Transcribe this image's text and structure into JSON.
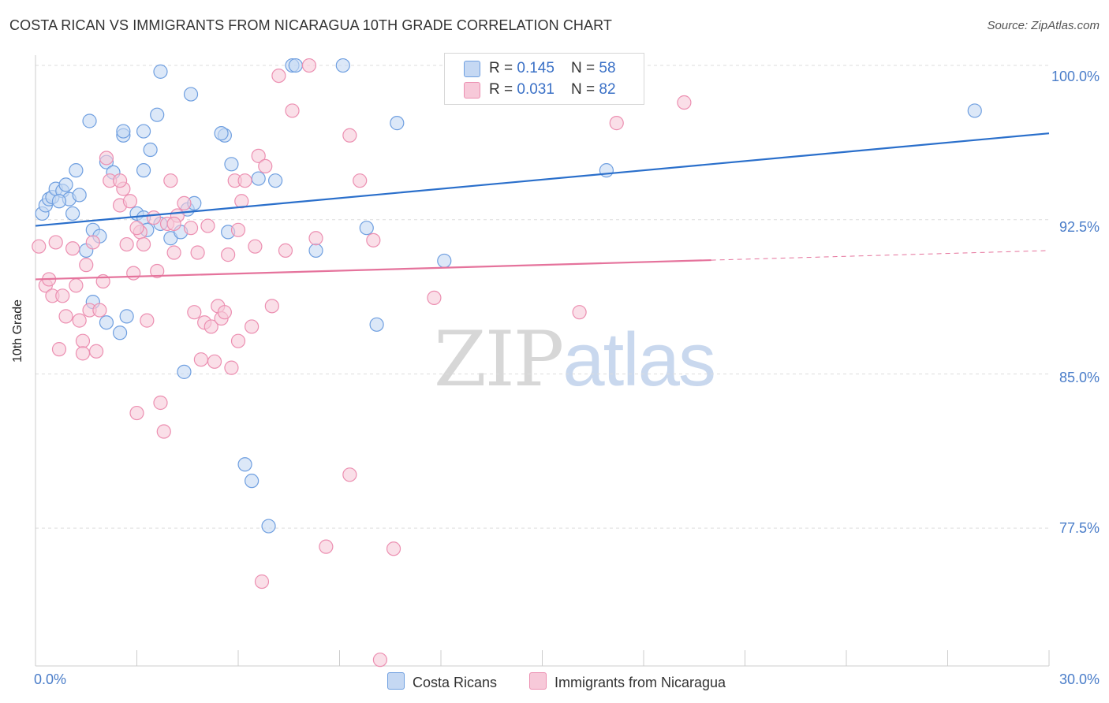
{
  "title": "COSTA RICAN VS IMMIGRANTS FROM NICARAGUA 10TH GRADE CORRELATION CHART",
  "source": "Source: ZipAtlas.com",
  "watermark": {
    "zip": "ZIP",
    "atlas": "atlas"
  },
  "colors": {
    "blue": "#6f9fe0",
    "blue_fill": "#c5d8f3",
    "blue_line": "#2a6fcb",
    "pink": "#ec8fb1",
    "pink_fill": "#f7c9d9",
    "pink_line": "#e5739c",
    "tick_text": "#4a7dc9",
    "grid": "#dddddd"
  },
  "legend": {
    "rows": [
      {
        "r_label": "R = ",
        "r_value": "0.145",
        "n_label": "N = ",
        "n_value": "58"
      },
      {
        "r_label": "R = ",
        "r_value": "0.031",
        "n_label": "N = ",
        "n_value": "82"
      }
    ]
  },
  "bottom_legend": [
    "Costa Ricans",
    "Immigrants from Nicaragua"
  ],
  "chart_data": {
    "type": "scatter",
    "ylabel": "10th Grade",
    "xlim": [
      0,
      30
    ],
    "ylim": [
      70.8,
      100.5
    ],
    "x_ticks_labels": [
      "0.0%",
      "30.0%"
    ],
    "y_ticks": [
      100.0,
      92.5,
      85.0,
      77.5
    ],
    "y_ticks_labels": [
      "100.0%",
      "92.5%",
      "85.0%",
      "77.5%"
    ],
    "grid": true,
    "series": [
      {
        "name": "Costa Ricans",
        "color": "#6f9fe0",
        "trend": {
          "x": [
            0,
            30
          ],
          "y": [
            92.2,
            96.7
          ],
          "dashed_from": null
        },
        "points": [
          [
            0.2,
            92.8
          ],
          [
            0.3,
            93.2
          ],
          [
            0.4,
            93.5
          ],
          [
            0.5,
            93.6
          ],
          [
            0.6,
            94.0
          ],
          [
            0.8,
            93.9
          ],
          [
            0.9,
            94.2
          ],
          [
            1.0,
            93.5
          ],
          [
            1.2,
            94.9
          ],
          [
            1.1,
            92.8
          ],
          [
            1.6,
            97.3
          ],
          [
            2.1,
            95.3
          ],
          [
            2.6,
            96.6
          ],
          [
            2.6,
            96.8
          ],
          [
            3.2,
            96.8
          ],
          [
            3.4,
            95.9
          ],
          [
            3.6,
            97.6
          ],
          [
            3.7,
            99.7
          ],
          [
            4.6,
            98.6
          ],
          [
            5.6,
            96.6
          ],
          [
            5.5,
            96.7
          ],
          [
            5.8,
            95.2
          ],
          [
            6.6,
            94.5
          ],
          [
            7.1,
            94.4
          ],
          [
            7.6,
            100.0
          ],
          [
            7.7,
            100.0
          ],
          [
            9.1,
            100.0
          ],
          [
            10.7,
            97.2
          ],
          [
            3.2,
            94.9
          ],
          [
            4.5,
            93.0
          ],
          [
            4.7,
            93.3
          ],
          [
            3.0,
            92.8
          ],
          [
            1.7,
            92.0
          ],
          [
            1.9,
            91.7
          ],
          [
            3.7,
            92.3
          ],
          [
            4.0,
            91.6
          ],
          [
            4.3,
            91.9
          ],
          [
            5.7,
            91.9
          ],
          [
            8.3,
            91.0
          ],
          [
            9.8,
            92.1
          ],
          [
            12.1,
            90.5
          ],
          [
            1.5,
            91.0
          ],
          [
            1.7,
            88.5
          ],
          [
            2.1,
            87.5
          ],
          [
            2.7,
            87.8
          ],
          [
            2.5,
            87.0
          ],
          [
            4.4,
            85.1
          ],
          [
            10.1,
            87.4
          ],
          [
            6.2,
            80.6
          ],
          [
            6.4,
            79.8
          ],
          [
            6.9,
            77.6
          ],
          [
            16.9,
            94.9
          ],
          [
            27.8,
            97.8
          ],
          [
            3.2,
            92.6
          ],
          [
            3.3,
            92.0
          ],
          [
            0.7,
            93.4
          ],
          [
            2.3,
            94.8
          ],
          [
            1.3,
            93.7
          ]
        ]
      },
      {
        "name": "Immigrants from Nicaragua",
        "color": "#ec8fb1",
        "trend": {
          "x": [
            0,
            30
          ],
          "y": [
            89.6,
            91.0
          ],
          "dashed_from": 20.0
        },
        "points": [
          [
            0.1,
            91.2
          ],
          [
            0.3,
            89.3
          ],
          [
            0.4,
            89.6
          ],
          [
            0.5,
            88.8
          ],
          [
            0.6,
            91.4
          ],
          [
            0.7,
            86.2
          ],
          [
            0.8,
            88.8
          ],
          [
            0.9,
            87.8
          ],
          [
            1.1,
            91.1
          ],
          [
            1.2,
            89.3
          ],
          [
            1.3,
            87.6
          ],
          [
            1.4,
            86.6
          ],
          [
            1.4,
            86.0
          ],
          [
            1.5,
            90.3
          ],
          [
            1.6,
            88.1
          ],
          [
            1.7,
            91.4
          ],
          [
            1.8,
            86.1
          ],
          [
            1.9,
            88.1
          ],
          [
            2.0,
            89.5
          ],
          [
            2.1,
            95.5
          ],
          [
            2.2,
            94.4
          ],
          [
            2.5,
            93.2
          ],
          [
            2.6,
            94.0
          ],
          [
            2.7,
            91.3
          ],
          [
            2.8,
            93.4
          ],
          [
            2.9,
            89.9
          ],
          [
            3.0,
            83.1
          ],
          [
            3.1,
            91.9
          ],
          [
            3.2,
            91.3
          ],
          [
            3.3,
            87.6
          ],
          [
            3.5,
            92.6
          ],
          [
            3.6,
            90.0
          ],
          [
            3.7,
            83.6
          ],
          [
            3.8,
            82.2
          ],
          [
            3.9,
            92.3
          ],
          [
            4.0,
            94.4
          ],
          [
            4.1,
            90.9
          ],
          [
            4.2,
            92.7
          ],
          [
            4.4,
            93.3
          ],
          [
            4.6,
            92.1
          ],
          [
            4.7,
            88.0
          ],
          [
            4.8,
            90.9
          ],
          [
            4.9,
            85.7
          ],
          [
            5.0,
            87.5
          ],
          [
            5.1,
            92.2
          ],
          [
            5.2,
            87.3
          ],
          [
            5.3,
            85.6
          ],
          [
            5.4,
            88.3
          ],
          [
            5.5,
            87.7
          ],
          [
            5.6,
            88.0
          ],
          [
            5.7,
            90.8
          ],
          [
            5.8,
            85.3
          ],
          [
            5.9,
            94.4
          ],
          [
            6.0,
            92.0
          ],
          [
            6.1,
            93.4
          ],
          [
            6.2,
            94.4
          ],
          [
            6.4,
            87.3
          ],
          [
            6.5,
            91.2
          ],
          [
            6.6,
            95.6
          ],
          [
            6.7,
            74.9
          ],
          [
            6.8,
            95.1
          ],
          [
            7.0,
            88.3
          ],
          [
            7.2,
            99.5
          ],
          [
            7.4,
            91.0
          ],
          [
            7.6,
            97.8
          ],
          [
            8.1,
            100.0
          ],
          [
            8.3,
            91.6
          ],
          [
            8.6,
            76.6
          ],
          [
            9.3,
            96.6
          ],
          [
            9.6,
            94.4
          ],
          [
            10.0,
            91.5
          ],
          [
            10.6,
            76.5
          ],
          [
            11.8,
            88.7
          ],
          [
            10.2,
            71.1
          ],
          [
            9.3,
            80.1
          ],
          [
            16.1,
            88.0
          ],
          [
            17.2,
            97.2
          ],
          [
            19.2,
            98.2
          ],
          [
            4.1,
            92.3
          ],
          [
            3.0,
            92.1
          ],
          [
            6.0,
            86.6
          ],
          [
            2.5,
            94.4
          ]
        ]
      }
    ]
  }
}
